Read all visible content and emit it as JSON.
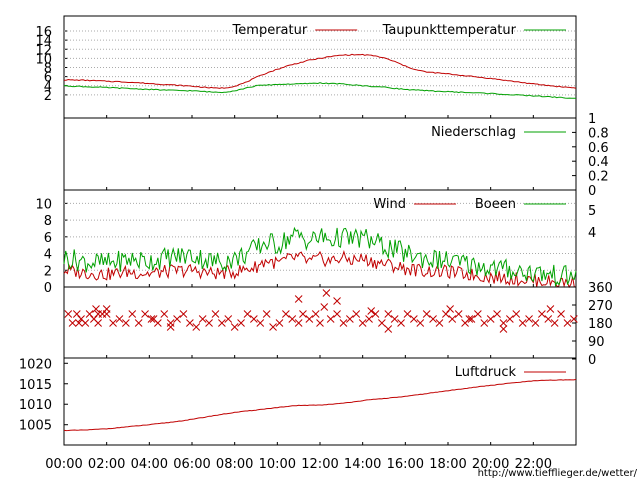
{
  "source_url": "http://www.tiefflieger.de/wetter/",
  "time_ticks": [
    "00:00",
    "02:00",
    "04:00",
    "06:00",
    "08:00",
    "10:00",
    "12:00",
    "14:00",
    "16:00",
    "18:00",
    "20:00",
    "22:00"
  ],
  "colors": {
    "red": "#c00000",
    "green": "#00a000",
    "grid": "#aaaaaa",
    "frame": "#000000"
  },
  "chart_data": [
    {
      "type": "line",
      "x_unit": "hours",
      "x_range": [
        0,
        24
      ],
      "ylim": [
        0,
        16
      ],
      "y_ticks": [
        "2",
        "4",
        "6",
        "8",
        "10",
        "12",
        "14",
        "16"
      ],
      "grid": true,
      "legend_placement": "top-right",
      "series": [
        {
          "name": "Temperatur",
          "color": "#c00000",
          "x": [
            0,
            1,
            2,
            3,
            4,
            5,
            6,
            6.5,
            7,
            7.5,
            8,
            8.5,
            9,
            9.5,
            10,
            10.5,
            11,
            11.5,
            12,
            12.5,
            13,
            13.5,
            14,
            14.5,
            15,
            15.5,
            16,
            16.5,
            17,
            18,
            19,
            20,
            21,
            22,
            23,
            24
          ],
          "values": [
            5.3,
            5.2,
            5.0,
            4.8,
            4.5,
            4.2,
            3.9,
            3.7,
            3.5,
            3.5,
            3.9,
            4.7,
            5.8,
            6.8,
            7.6,
            8.4,
            9.0,
            9.6,
            10.0,
            10.4,
            10.7,
            10.8,
            10.8,
            10.6,
            10.1,
            9.3,
            8.3,
            7.5,
            7.0,
            6.6,
            6.1,
            5.6,
            5.0,
            4.4,
            3.9,
            3.5
          ]
        },
        {
          "name": "Taupunkttemperatur",
          "color": "#00a000",
          "x": [
            0,
            1,
            2,
            3,
            4,
            5,
            6,
            7,
            7.5,
            8,
            9,
            10,
            11,
            12,
            13,
            14,
            15,
            16,
            17,
            18,
            19,
            20,
            21,
            22,
            23,
            24
          ],
          "values": [
            4.0,
            3.8,
            3.6,
            3.4,
            3.2,
            3.0,
            2.9,
            2.6,
            2.6,
            2.9,
            4.0,
            4.3,
            4.4,
            4.6,
            4.4,
            4.0,
            3.7,
            3.2,
            2.9,
            2.7,
            2.5,
            2.3,
            2.0,
            1.8,
            1.5,
            1.2
          ]
        }
      ]
    },
    {
      "type": "line",
      "x_unit": "hours",
      "x_range": [
        0,
        24
      ],
      "ylim": [
        0,
        1
      ],
      "y_ticks": [
        "0",
        "0.2",
        "0.4",
        "0.6",
        "0.8",
        "1"
      ],
      "legend_placement": "top-right",
      "series": [
        {
          "name": "Niederschlag",
          "color": "#00a000",
          "x": [
            0,
            24
          ],
          "values": [
            0,
            0
          ]
        }
      ]
    },
    {
      "type": "line",
      "x_unit": "hours",
      "x_range": [
        0,
        24
      ],
      "ylim": [
        0,
        11
      ],
      "y_ticks": [
        "0",
        "2",
        "4",
        "6",
        "8",
        "10"
      ],
      "right_ticks": [
        "5",
        "4"
      ],
      "grid": true,
      "legend_placement": "top-right",
      "series": [
        {
          "name": "Wind",
          "color": "#c00000",
          "x": [
            0,
            1,
            2,
            3,
            4,
            5,
            6,
            7,
            8,
            9,
            9.5,
            10,
            10.5,
            11,
            11.5,
            12,
            12.5,
            13,
            13.5,
            14,
            14.5,
            15,
            16,
            17,
            18,
            19,
            20,
            21,
            22,
            23,
            24
          ],
          "values": [
            2.0,
            1.7,
            1.5,
            1.8,
            1.6,
            1.9,
            2.0,
            1.6,
            1.8,
            2.4,
            3.2,
            2.8,
            3.3,
            3.6,
            3.0,
            3.4,
            3.1,
            3.5,
            3.2,
            3.4,
            3.0,
            2.8,
            2.2,
            1.9,
            1.8,
            1.5,
            1.2,
            1.0,
            0.8,
            0.6,
            0.5
          ]
        },
        {
          "name": "Boeen",
          "color": "#00a000",
          "x": [
            0,
            1,
            2,
            3,
            4,
            5,
            6,
            7,
            8,
            9,
            9.5,
            10,
            10.5,
            11,
            11.5,
            12,
            12.5,
            13,
            13.5,
            14,
            14.5,
            15,
            16,
            17,
            18,
            19,
            20,
            21,
            22,
            23,
            24
          ],
          "values": [
            3.5,
            3.0,
            2.8,
            3.3,
            3.1,
            3.6,
            3.8,
            3.0,
            3.3,
            4.6,
            5.4,
            5.0,
            5.8,
            6.2,
            5.5,
            6.0,
            5.6,
            6.0,
            5.7,
            5.9,
            5.4,
            4.9,
            4.0,
            3.4,
            3.1,
            2.7,
            2.3,
            2.0,
            1.7,
            1.4,
            1.2
          ]
        }
      ]
    },
    {
      "type": "scatter",
      "x_unit": "hours",
      "x_range": [
        0,
        24
      ],
      "ylim": [
        0,
        360
      ],
      "y_ticks": [
        "0",
        "90",
        "180",
        "270",
        "360"
      ],
      "marker": "x",
      "color": "#c00000",
      "series": [
        {
          "name": "",
          "x": [
            0.2,
            0.4,
            0.6,
            0.8,
            1.0,
            1.2,
            1.4,
            1.6,
            1.8,
            2.0,
            2.3,
            2.6,
            2.9,
            3.2,
            3.5,
            3.8,
            4.1,
            4.4,
            4.7,
            5.0,
            5.3,
            5.6,
            5.9,
            6.2,
            6.5,
            6.8,
            7.1,
            7.4,
            7.7,
            8.0,
            8.3,
            8.6,
            8.9,
            9.2,
            9.5,
            9.8,
            10.1,
            10.4,
            10.7,
            11.0,
            11.2,
            11.5,
            11.8,
            12.0,
            12.2,
            12.5,
            12.8,
            13.1,
            13.4,
            13.7,
            14.0,
            14.3,
            14.6,
            14.9,
            15.2,
            15.5,
            15.8,
            16.1,
            16.4,
            16.7,
            17.0,
            17.3,
            17.6,
            17.9,
            18.2,
            18.5,
            18.8,
            19.1,
            19.4,
            19.7,
            20.0,
            20.3,
            20.6,
            20.9,
            21.2,
            21.5,
            21.8,
            22.1,
            22.4,
            22.7,
            23.0,
            23.3,
            23.6,
            23.9,
            0.7,
            1.5,
            1.6,
            2.0,
            4.2,
            5.0,
            11.0,
            12.3,
            12.8,
            14.4,
            15.2,
            18.1,
            19.0,
            20.6,
            22.8
          ],
          "values": [
            225,
            180,
            225,
            200,
            180,
            225,
            200,
            180,
            225,
            225,
            180,
            200,
            180,
            225,
            180,
            225,
            200,
            180,
            225,
            180,
            200,
            225,
            180,
            160,
            200,
            180,
            225,
            180,
            200,
            160,
            180,
            225,
            200,
            180,
            225,
            160,
            180,
            225,
            200,
            180,
            225,
            200,
            225,
            180,
            260,
            200,
            225,
            180,
            200,
            225,
            180,
            200,
            225,
            180,
            225,
            200,
            180,
            225,
            200,
            180,
            225,
            200,
            180,
            225,
            200,
            225,
            180,
            200,
            225,
            180,
            200,
            225,
            180,
            200,
            225,
            180,
            200,
            180,
            225,
            200,
            180,
            225,
            180,
            200,
            180,
            250,
            225,
            250,
            200,
            160,
            300,
            330,
            290,
            240,
            150,
            250,
            200,
            150,
            250
          ]
        }
      ]
    },
    {
      "type": "line",
      "x_unit": "hours",
      "x_range": [
        0,
        24
      ],
      "ylim": [
        1002,
        1023
      ],
      "y_ticks": [
        "1005",
        "1010",
        "1015",
        "1020"
      ],
      "grid": false,
      "legend_placement": "top-right",
      "series": [
        {
          "name": "Luftdruck",
          "color": "#c00000",
          "x": [
            0,
            1,
            2,
            3,
            4,
            5,
            6,
            7,
            8,
            9,
            10,
            11,
            12,
            13,
            14,
            15,
            16,
            17,
            18,
            19,
            20,
            21,
            22,
            23,
            24
          ],
          "values": [
            1003.6,
            1003.7,
            1004.0,
            1004.5,
            1005.0,
            1005.6,
            1006.3,
            1007.2,
            1008.0,
            1008.6,
            1009.2,
            1009.7,
            1009.8,
            1010.2,
            1010.9,
            1011.4,
            1011.9,
            1012.6,
            1013.3,
            1014.0,
            1014.6,
            1015.2,
            1015.7,
            1015.9,
            1016.0
          ]
        }
      ]
    }
  ]
}
